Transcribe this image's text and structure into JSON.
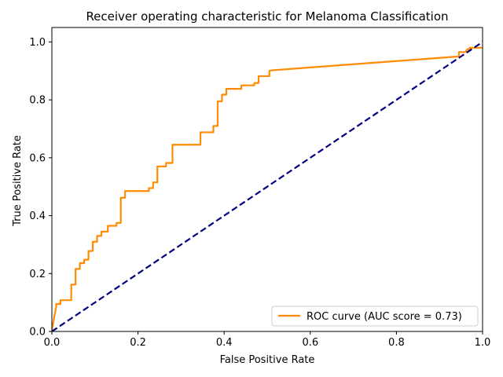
{
  "chart_data": {
    "type": "line",
    "title": "Receiver operating characteristic for Melanoma Classification",
    "xlabel": "False Positive Rate",
    "ylabel": "True Positive Rate",
    "xlim": [
      0.0,
      1.0
    ],
    "ylim": [
      0.0,
      1.05
    ],
    "xticks": [
      "0.0",
      "0.2",
      "0.4",
      "0.6",
      "0.8",
      "1.0"
    ],
    "yticks": [
      "0.0",
      "0.2",
      "0.4",
      "0.6",
      "0.8",
      "1.0"
    ],
    "grid": false,
    "legend_position": "lower-right",
    "series": [
      {
        "name": "ROC curve (AUC score = 0.73)",
        "color": "#ff8c00",
        "style": "solid",
        "x": [
          0.0,
          0.0,
          0.01,
          0.01,
          0.02,
          0.02,
          0.045,
          0.045,
          0.055,
          0.055,
          0.065,
          0.065,
          0.075,
          0.075,
          0.085,
          0.085,
          0.095,
          0.095,
          0.105,
          0.105,
          0.115,
          0.115,
          0.13,
          0.13,
          0.15,
          0.15,
          0.16,
          0.16,
          0.17,
          0.17,
          0.225,
          0.225,
          0.235,
          0.235,
          0.245,
          0.245,
          0.265,
          0.265,
          0.28,
          0.28,
          0.345,
          0.345,
          0.375,
          0.375,
          0.385,
          0.385,
          0.395,
          0.395,
          0.405,
          0.405,
          0.44,
          0.44,
          0.47,
          0.47,
          0.48,
          0.48,
          0.505,
          0.505,
          0.51,
          0.945,
          0.945,
          0.96,
          0.96,
          0.965,
          0.97,
          0.97,
          1.0
        ],
        "y": [
          0.0,
          0.005,
          0.085,
          0.095,
          0.095,
          0.108,
          0.108,
          0.162,
          0.162,
          0.216,
          0.216,
          0.236,
          0.236,
          0.248,
          0.248,
          0.278,
          0.278,
          0.31,
          0.31,
          0.33,
          0.33,
          0.345,
          0.345,
          0.365,
          0.365,
          0.375,
          0.375,
          0.462,
          0.462,
          0.485,
          0.485,
          0.495,
          0.495,
          0.515,
          0.515,
          0.57,
          0.57,
          0.582,
          0.582,
          0.645,
          0.645,
          0.688,
          0.688,
          0.71,
          0.71,
          0.795,
          0.795,
          0.818,
          0.818,
          0.838,
          0.838,
          0.85,
          0.85,
          0.858,
          0.858,
          0.882,
          0.882,
          0.9,
          0.902,
          0.95,
          0.965,
          0.965,
          0.965,
          0.975,
          0.975,
          0.98,
          0.98
        ]
      },
      {
        "name": "",
        "color": "#000080",
        "style": "dashed",
        "x": [
          0.0,
          1.0
        ],
        "y": [
          0.0,
          1.0
        ]
      }
    ]
  }
}
